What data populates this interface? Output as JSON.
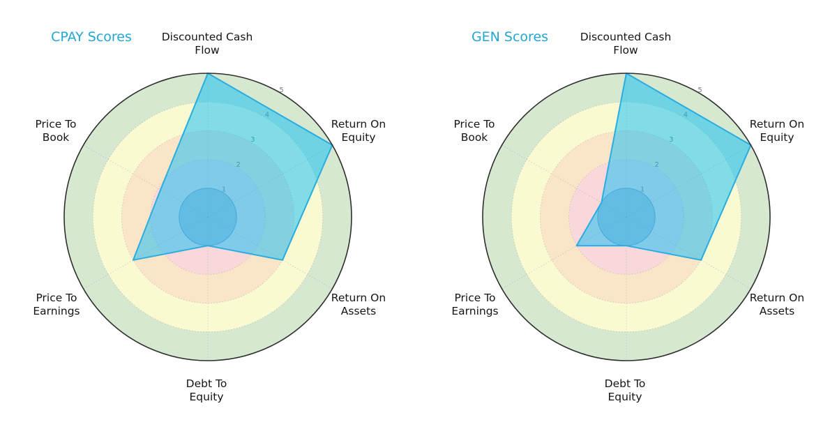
{
  "page": {
    "background": "#ffffff"
  },
  "colors": {
    "title": "#22a7d4",
    "axis_label": "#151515",
    "tick_label": "#7d7d7d",
    "grid": "#8a8a8a",
    "outer_ring": "#2e2e2e",
    "polygon_fill": "rgba(0,188,250,0.48)",
    "polygon_stroke": "#29ade0",
    "inner_circle_fill": "rgba(70,130,180,0.32)",
    "inner_circle_stroke": "rgba(60,120,170,0.5)",
    "band_red": "#f8d8da",
    "band_orange": "#fbe5c8",
    "band_yellow": "#fafad2",
    "band_green": "#d6e8d0"
  },
  "chart_data": [
    {
      "type": "radar",
      "title": "CPAY Scores",
      "categories": [
        "Discounted Cash Flow",
        "Return On Equity",
        "Return On Assets",
        "Debt To Equity",
        "Price To Earnings",
        "Price To Book"
      ],
      "axis_labels": [
        "Discounted Cash\nFlow",
        "Return On\nEquity",
        "Return On\nAssets",
        "Debt To\nEquity",
        "Price To\nEarnings",
        "Price To\nBook"
      ],
      "values": [
        5,
        5,
        3,
        1,
        3,
        1.9
      ],
      "rlim": [
        0,
        5
      ],
      "rticks": [
        1,
        2,
        3,
        4,
        5
      ],
      "grid": true,
      "legend": "none",
      "bands": [
        {
          "name": "red",
          "from": 0,
          "to": 2,
          "color": "#f8d8da"
        },
        {
          "name": "orange",
          "from": 2,
          "to": 3,
          "color": "#fbe5c8"
        },
        {
          "name": "yellow",
          "from": 3,
          "to": 4,
          "color": "#fafad2"
        },
        {
          "name": "green",
          "from": 4,
          "to": 5,
          "color": "#d6e8d0"
        }
      ],
      "inner_circle_radius": 1
    },
    {
      "type": "radar",
      "title": "GEN Scores",
      "categories": [
        "Discounted Cash Flow",
        "Return On Equity",
        "Return On Assets",
        "Debt To Equity",
        "Price To Earnings",
        "Price To Book"
      ],
      "axis_labels": [
        "Discounted Cash\nFlow",
        "Return On\nEquity",
        "Return On\nAssets",
        "Debt To\nEquity",
        "Price To\nEarnings",
        "Price To\nBook"
      ],
      "values": [
        5,
        5,
        3,
        1,
        2,
        1
      ],
      "rlim": [
        0,
        5
      ],
      "rticks": [
        1,
        2,
        3,
        4,
        5
      ],
      "grid": true,
      "legend": "none",
      "bands": [
        {
          "name": "red",
          "from": 0,
          "to": 2,
          "color": "#f8d8da"
        },
        {
          "name": "orange",
          "from": 2,
          "to": 3,
          "color": "#fbe5c8"
        },
        {
          "name": "yellow",
          "from": 3,
          "to": 4,
          "color": "#fafad2"
        },
        {
          "name": "green",
          "from": 4,
          "to": 5,
          "color": "#d6e8d0"
        }
      ],
      "inner_circle_radius": 1
    }
  ]
}
